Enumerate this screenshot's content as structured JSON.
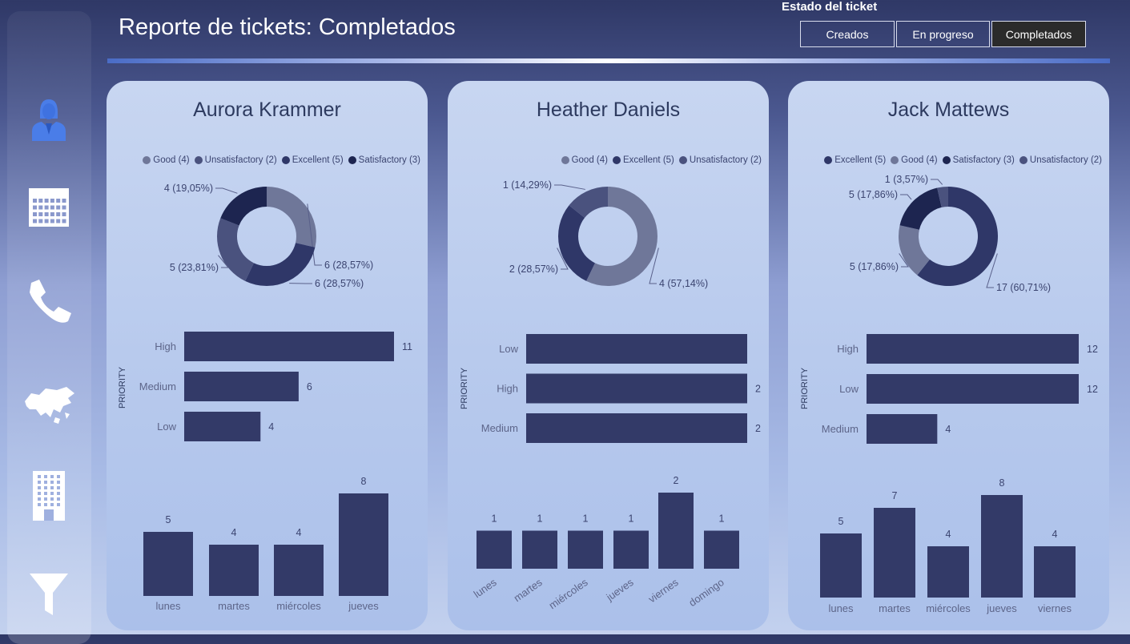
{
  "header": {
    "title": "Reporte de tickets: Completados",
    "filter_label": "Estado del ticket",
    "filters": [
      "Creados",
      "En progreso",
      "Completados"
    ],
    "selected_filter": "Completados"
  },
  "sidebar": {
    "items": [
      "agent-icon",
      "calendar-icon",
      "phone-icon",
      "asia-map-icon",
      "building-icon",
      "filter-icon"
    ]
  },
  "colors": {
    "bar": "#333a68",
    "Good": "#6f7799",
    "Unsatisfactory": "#4a527e",
    "Excellent": "#2f3768",
    "Satisfactory": "#1d2550"
  },
  "cards": [
    {
      "name": "Aurora Krammer",
      "legend": [
        "Good (4)",
        "Unsatisfactory (2)",
        "Excellent (5)",
        "Satisfactory (3)"
      ],
      "priority_axis": "PRIORITY",
      "priority_counts": [
        "11",
        "6",
        "4"
      ],
      "day_counts": [
        "5",
        "4",
        "4",
        "8"
      ],
      "donut_labels": [
        "6 (28,57%)",
        "6 (28,57%)",
        "5 (23,81%)",
        "4 (19,05%)"
      ]
    },
    {
      "name": "Heather Daniels",
      "legend": [
        "Good (4)",
        "Excellent (5)",
        "Unsatisfactory (2)"
      ],
      "priority_axis": "PRIORITY",
      "priority_counts": [
        "2",
        "2"
      ],
      "day_counts": [
        "1",
        "1",
        "1",
        "1",
        "2",
        "1"
      ],
      "donut_labels": [
        "4 (57,14%)",
        "2 (28,57%)",
        "1 (14,29%)"
      ]
    },
    {
      "name": "Jack Mattews",
      "legend": [
        "Excellent (5)",
        "Good (4)",
        "Satisfactory (3)",
        "Unsatisfactory (2)"
      ],
      "priority_axis": "PRIORITY",
      "priority_counts": [
        "12",
        "12",
        "4"
      ],
      "day_counts": [
        "5",
        "7",
        "4",
        "8",
        "4"
      ],
      "donut_labels": [
        "17 (60,71%)",
        "5 (17,86%)",
        "5 (17,86%)",
        "1 (3,57%)"
      ]
    }
  ],
  "chart_data": [
    {
      "type": "pie",
      "title": "",
      "categories": [
        "Good",
        "Excellent",
        "Unsatisfactory",
        "Satisfactory"
      ],
      "values": [
        6,
        6,
        5,
        4
      ],
      "labels": [
        "6 (28,57%)",
        "6 (28,57%)",
        "5 (23,81%)",
        "4 (19,05%)"
      ],
      "legend": [
        "Good (4)",
        "Unsatisfactory (2)",
        "Excellent (5)",
        "Satisfactory (3)"
      ]
    },
    {
      "type": "bar",
      "orientation": "horizontal",
      "ylabel": "PRIORITY",
      "categories": [
        "High",
        "Medium",
        "Low"
      ],
      "values": [
        11,
        6,
        4
      ]
    },
    {
      "type": "bar",
      "categories": [
        "lunes",
        "martes",
        "miércoles",
        "jueves"
      ],
      "values": [
        5,
        4,
        4,
        8
      ]
    },
    {
      "type": "pie",
      "title": "",
      "categories": [
        "Good",
        "Excellent",
        "Unsatisfactory"
      ],
      "values": [
        4,
        2,
        1
      ],
      "labels": [
        "4 (57,14%)",
        "2 (28,57%)",
        "1 (14,29%)"
      ],
      "legend": [
        "Good (4)",
        "Excellent (5)",
        "Unsatisfactory (2)"
      ]
    },
    {
      "type": "bar",
      "orientation": "horizontal",
      "ylabel": "PRIORITY",
      "categories": [
        "Low",
        "High",
        "Medium"
      ],
      "values": [
        null,
        2,
        2
      ]
    },
    {
      "type": "bar",
      "categories": [
        "lunes",
        "martes",
        "miércoles",
        "jueves",
        "viernes",
        "domingo"
      ],
      "values": [
        1,
        1,
        1,
        1,
        2,
        1
      ]
    },
    {
      "type": "pie",
      "title": "",
      "categories": [
        "Excellent",
        "Good",
        "Satisfactory",
        "Unsatisfactory"
      ],
      "values": [
        17,
        5,
        5,
        1
      ],
      "labels": [
        "17 (60,71%)",
        "5 (17,86%)",
        "5 (17,86%)",
        "1 (3,57%)"
      ],
      "legend": [
        "Excellent (5)",
        "Good (4)",
        "Satisfactory (3)",
        "Unsatisfactory (2)"
      ]
    },
    {
      "type": "bar",
      "orientation": "horizontal",
      "ylabel": "PRIORITY",
      "categories": [
        "High",
        "Low",
        "Medium"
      ],
      "values": [
        12,
        12,
        4
      ]
    },
    {
      "type": "bar",
      "categories": [
        "lunes",
        "martes",
        "miércoles",
        "jueves",
        "viernes"
      ],
      "values": [
        5,
        7,
        4,
        8,
        4
      ]
    }
  ]
}
